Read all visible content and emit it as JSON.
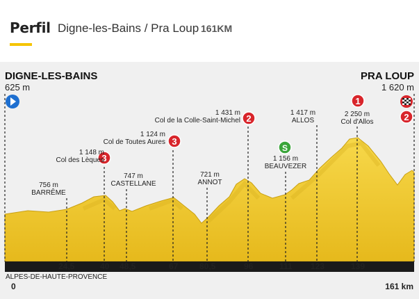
{
  "header": {
    "title": "Perfil",
    "route": "Digne-les-Bains / Pra Loup",
    "distance": "161KM",
    "accent_color": "#f5c400"
  },
  "start": {
    "name": "DIGNE-LES-BAINS",
    "altitude": "625 m",
    "icon": "start-arrow-icon"
  },
  "finish": {
    "name": "PRA LOUP",
    "altitude": "1 620 m",
    "icons": [
      "finish-flag-icon",
      "category-2-badge-icon"
    ]
  },
  "climbs": [
    {
      "id": "lequques",
      "altitude": "1 148 m",
      "name": "Col des Lèques",
      "category": "3",
      "km": 40
    },
    {
      "id": "toutes-aures",
      "altitude": "1 124 m",
      "name": "Col de Toutes Aures",
      "category": "3",
      "km": 67
    },
    {
      "id": "colle-st-michel",
      "altitude": "1 431 m",
      "name": "Col de la Colle-Saint-Michel",
      "category": "2",
      "km": 96
    },
    {
      "id": "allos",
      "altitude": "2 250 m",
      "name": "Col d'Allos",
      "category": "1",
      "km": 139
    }
  ],
  "places": [
    {
      "id": "barreme",
      "altitude": "756 m",
      "name": "BARRÊME",
      "km": 24.5
    },
    {
      "id": "castellane",
      "altitude": "747 m",
      "name": "CASTELLANE",
      "km": 48.5
    },
    {
      "id": "annot",
      "altitude": "721 m",
      "name": "ANNOT",
      "km": 80.5
    },
    {
      "id": "beauvezer",
      "altitude": "1 156 m",
      "name": "BEAUVEZER",
      "km": 111,
      "sprint": "S"
    },
    {
      "id": "allos-town",
      "altitude": "1 417 m",
      "name": "ALLOS",
      "km": 123
    }
  ],
  "km_markers": [
    "24,5",
    "40",
    "48,5",
    "67",
    "80,5",
    "96",
    "111",
    "123",
    "139"
  ],
  "footer": {
    "region": "ALPES-DE-HAUTE-PROVENCE",
    "start_km": "0",
    "end_km": "161 km"
  },
  "colors": {
    "terrain": "#f2cc2a",
    "terrain_dark": "#cfa514",
    "cat3": "#d8252b",
    "cat1": "#d8252b",
    "sprint": "#3aa53a",
    "start": "#1e6fd0"
  }
}
